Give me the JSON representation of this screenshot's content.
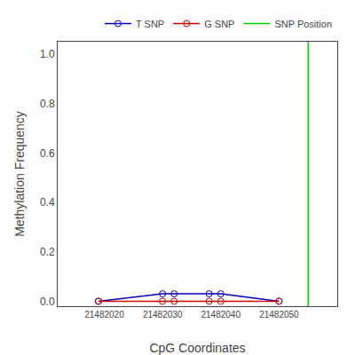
{
  "chart_data": {
    "type": "line",
    "xlabel": "CpG Coordinates",
    "ylabel": "Methylation Frequency",
    "series": [
      {
        "name": "T SNP",
        "color": "#0000bb",
        "marker": "circle-open",
        "x": [
          21482019,
          21482030,
          21482032,
          21482038,
          21482040,
          21482050
        ],
        "values": [
          0.0,
          0.03,
          0.03,
          0.03,
          0.03,
          0.0
        ]
      },
      {
        "name": "G SNP",
        "color": "#cc0000",
        "marker": "circle-open",
        "x": [
          21482019,
          21482030,
          21482032,
          21482038,
          21482040,
          21482050
        ],
        "values": [
          0.0,
          0.0,
          0.0,
          0.0,
          0.0,
          0.0
        ]
      },
      {
        "name": "SNP Position",
        "color": "#00cc00",
        "type": "vline",
        "x": [
          21482055
        ]
      }
    ],
    "xlim": [
      21482012,
      21482060
    ],
    "ylim": [
      -0.02,
      1.05
    ],
    "xticks": [
      21482020,
      21482030,
      21482040,
      21482050
    ],
    "yticks": [
      {
        "value": 0.0,
        "label": "0.0"
      },
      0.2,
      0.4,
      0.6,
      0.8,
      {
        "value": 1.0,
        "label": "1.0"
      }
    ],
    "grid": false,
    "legend": "upper right"
  }
}
